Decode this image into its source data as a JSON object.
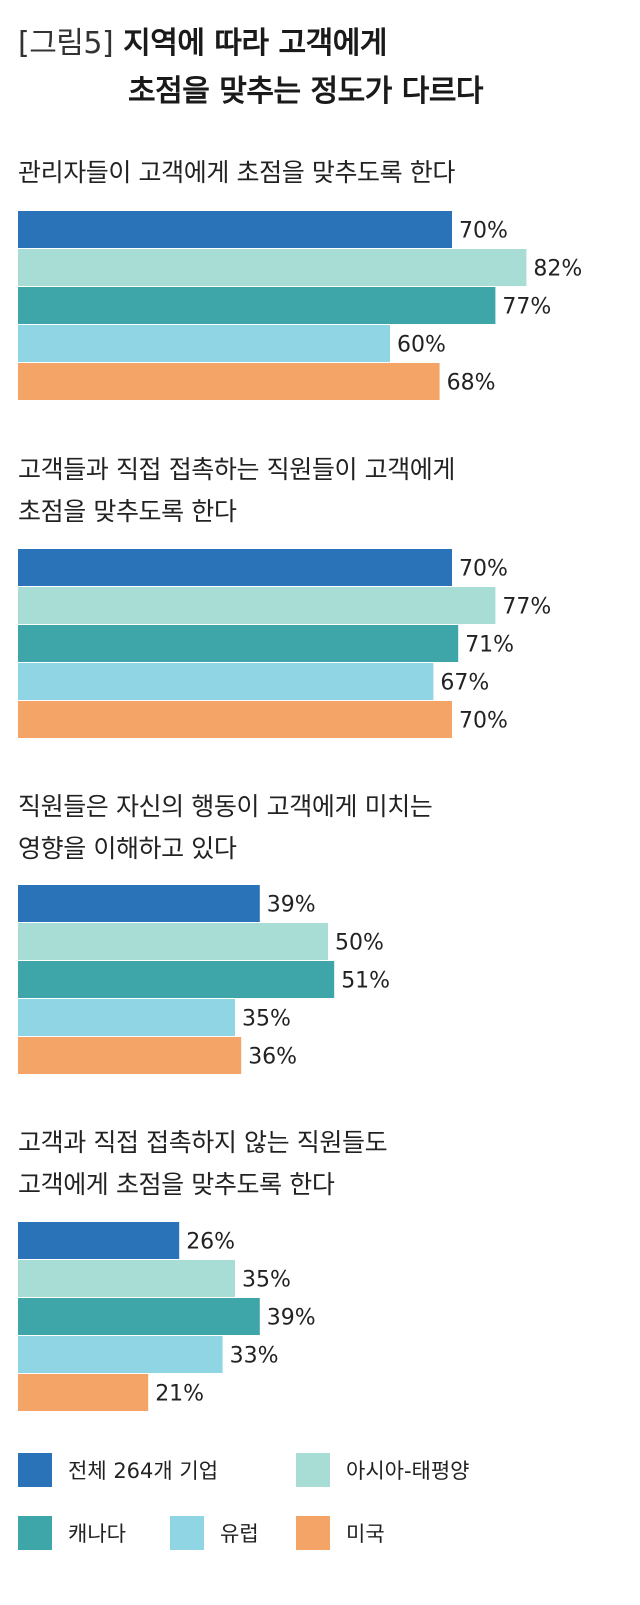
{
  "title": {
    "tag": "[그림5]",
    "line1": "지역에 따라 고객에게",
    "line2": "초점을 맞추는 정도가 다르다"
  },
  "chart_data": {
    "type": "bar",
    "orientation": "horizontal",
    "value_suffix": "%",
    "xlim": [
      0,
      100
    ],
    "grid": false,
    "legend_position": "bottom",
    "series": [
      {
        "name": "전체 264개 기업",
        "color": "#2b73b9"
      },
      {
        "name": "아시아-태평양",
        "color": "#a8ddd6"
      },
      {
        "name": "캐나다",
        "color": "#3ea5a8"
      },
      {
        "name": "유럽",
        "color": "#8fd5e3"
      },
      {
        "name": "미국",
        "color": "#f5a467"
      }
    ],
    "groups": [
      {
        "label_lines": [
          "관리자들이 고객에게 초점을 맞추도록 한다"
        ],
        "values": [
          70,
          82,
          77,
          60,
          68
        ]
      },
      {
        "label_lines": [
          "고객들과 직접 접촉하는 직원들이 고객에게",
          "초점을 맞추도록 한다"
        ],
        "values": [
          70,
          77,
          71,
          67,
          70
        ]
      },
      {
        "label_lines": [
          "직원들은 자신의 행동이 고객에게 미치는",
          "영향을 이해하고 있다"
        ],
        "values": [
          39,
          50,
          51,
          35,
          36
        ]
      },
      {
        "label_lines": [
          "고객과 직접 접촉하지 않는 직원들도",
          "고객에게 초점을 맞추도록 한다"
        ],
        "values": [
          26,
          35,
          39,
          33,
          21
        ]
      }
    ]
  }
}
